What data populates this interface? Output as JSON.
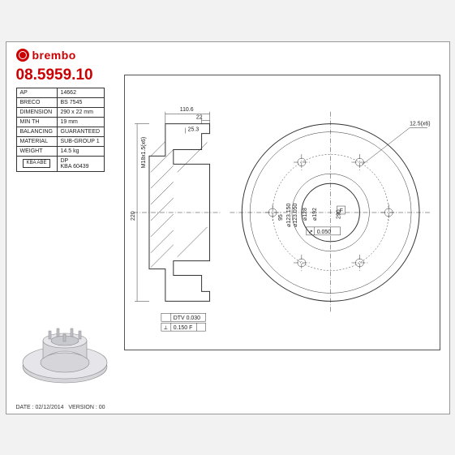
{
  "brand": "brembo",
  "part_number": "08.5959.10",
  "specs": {
    "rows": [
      {
        "label": "AP",
        "value": "14662"
      },
      {
        "label": "BRECO",
        "value": "BS 7545"
      },
      {
        "label": "DIMENSION",
        "value": "290 x 22 mm"
      },
      {
        "label": "MIN TH",
        "value": "19 mm"
      },
      {
        "label": "BALANCING",
        "value": "GUARANTEED"
      },
      {
        "label": "MATERIAL",
        "value": "SUB-GROUP 1"
      },
      {
        "label": "WEIGHT",
        "value": "14.5 kg"
      }
    ],
    "badge_label": "KBA\nABE",
    "badge_row": {
      "label": "DP",
      "value": "KBA 60439"
    }
  },
  "drawing": {
    "side": {
      "total_width": "110.6",
      "disc_thickness": "22",
      "hub_offset": "25.3",
      "thread_spec": "M18x1.5(x6)",
      "overall_height": "220"
    },
    "front": {
      "outer_diameter": "290",
      "bolt_circle": "192",
      "register_diameter": "128",
      "hub_id_upper": "123.150",
      "hub_id_lower": "123.050",
      "hub_inner": "95",
      "bolt_hole": "12.5(x6)",
      "runout_tol": "0.050",
      "flatness_tol": "0.150 F",
      "dtv_tol": "DTV 0.030",
      "flat_sym": "F"
    }
  },
  "footer": {
    "date_label": "DATE :",
    "date": "02/12/2014",
    "version_label": "VERSION :",
    "version": "00"
  },
  "colors": {
    "accent": "#cc0000",
    "line": "#333333",
    "bg": "#ffffff",
    "page_bg": "#f2f2f2",
    "iso_fill": "#d5d5da"
  }
}
